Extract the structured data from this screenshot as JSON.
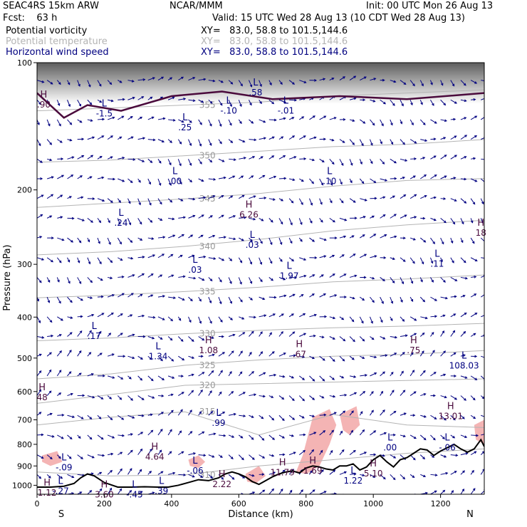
{
  "header": {
    "model": "SEAC4RS 15km ARW",
    "center": "NCAR/MMM",
    "init": "Init: 00 UTC Mon 26 Aug 13",
    "fcst": "Fcst:    63 h",
    "valid": "Valid: 15 UTC Wed 28 Aug 13 (10 CDT Wed 28 Aug 13)",
    "fields": [
      {
        "name": "Potential vorticity",
        "xy": "XY=   83.0, 58.8 to 101.5,144.6",
        "color": "#000000"
      },
      {
        "name": "Potential temperature",
        "xy": "XY=   83.0, 58.8 to 101.5,144.6",
        "color": "#b4b4b4"
      },
      {
        "name": "Horizontal wind speed",
        "xy": "XY=   83.0, 58.8 to 101.5,144.6",
        "color": "#000080"
      }
    ]
  },
  "chart_data": {
    "type": "cross-section",
    "xlabel": "Distance (km)",
    "ylabel": "Pressure (hPa)",
    "xlim": [
      0,
      1330
    ],
    "ylim": [
      1050,
      100
    ],
    "y_scale": "log",
    "x_ticks": [
      "0",
      "200",
      "400",
      "600",
      "800",
      "1000",
      "1200"
    ],
    "y_ticks": [
      "100",
      "200",
      "300",
      "400",
      "500",
      "600",
      "700",
      "800",
      "900",
      "1000"
    ],
    "endpoint_labels": {
      "left": "S",
      "right": "N"
    },
    "theta_contours": [
      {
        "label": "355",
        "p": [
          130,
          128,
          126,
          124,
          120,
          118,
          116
        ]
      },
      {
        "label": "350",
        "p": [
          172,
          170,
          166,
          162,
          158,
          156,
          152
        ]
      },
      {
        "label": "345",
        "p": [
          220,
          215,
          210,
          204,
          196,
          190,
          188
        ]
      },
      {
        "label": "340",
        "p": [
          285,
          280,
          272,
          262,
          250,
          242,
          236
        ]
      },
      {
        "label": "335",
        "p": [
          360,
          355,
          348,
          340,
          330,
          325,
          318
        ]
      },
      {
        "label": "330",
        "p": [
          455,
          448,
          438,
          430,
          424,
          420,
          414
        ]
      },
      {
        "label": "325",
        "p": [
          560,
          545,
          520,
          505,
          495,
          490,
          480
        ]
      },
      {
        "label": "320",
        "p": [
          640,
          610,
          580,
          575,
          570,
          565,
          560
        ]
      },
      {
        "label": "315",
        "p": [
          720,
          690,
          670,
          760,
          680,
          720,
          730
        ]
      },
      {
        "label": "310",
        "p": [
          930,
          950,
          945,
          900,
          870,
          840,
          820
        ]
      }
    ],
    "theta_x": [
      0,
      220,
      440,
      660,
      880,
      1100,
      1330
    ],
    "annotations": [
      {
        "t": "H",
        "v": ".90",
        "x": 20,
        "p": 122
      },
      {
        "t": "L",
        "v": "-1.5",
        "x": 200,
        "p": 128
      },
      {
        "t": "L",
        "v": ".25",
        "x": 440,
        "p": 138
      },
      {
        "t": "L",
        "v": "-.10",
        "x": 570,
        "p": 126
      },
      {
        "t": "L",
        "v": ".58",
        "x": 650,
        "p": 114
      },
      {
        "t": "L",
        "v": "-.01",
        "x": 740,
        "p": 126
      },
      {
        "t": "L",
        "v": ".00",
        "x": 410,
        "p": 185
      },
      {
        "t": "L",
        "v": ".10",
        "x": 870,
        "p": 185
      },
      {
        "t": "L",
        "v": ".24",
        "x": 250,
        "p": 232
      },
      {
        "t": "H",
        "v": "6.26",
        "x": 630,
        "p": 222
      },
      {
        "t": "L",
        "v": ".03",
        "x": 640,
        "p": 262
      },
      {
        "t": "H",
        "v": "18",
        "x": 1320,
        "p": 245
      },
      {
        "t": "L",
        "v": ".03",
        "x": 470,
        "p": 300
      },
      {
        "t": "L",
        "v": "1.97",
        "x": 750,
        "p": 310
      },
      {
        "t": "L",
        "v": ".11",
        "x": 1190,
        "p": 290
      },
      {
        "t": "L",
        "v": ".17",
        "x": 170,
        "p": 430
      },
      {
        "t": "H",
        "v": "1.08",
        "x": 510,
        "p": 465
      },
      {
        "t": "L",
        "v": "1.34",
        "x": 360,
        "p": 480
      },
      {
        "t": "H",
        "v": ".67",
        "x": 780,
        "p": 475
      },
      {
        "t": "H",
        "v": ".75",
        "x": 1120,
        "p": 465
      },
      {
        "t": "L",
        "v": "108.03",
        "x": 1270,
        "p": 505
      },
      {
        "t": "H",
        "v": "48",
        "x": 15,
        "p": 600
      },
      {
        "t": "L",
        "v": ".99",
        "x": 540,
        "p": 690
      },
      {
        "t": "H",
        "v": "13.01",
        "x": 1230,
        "p": 665
      },
      {
        "t": "L",
        "v": ".00",
        "x": 1050,
        "p": 790
      },
      {
        "t": "L",
        "v": "-.06",
        "x": 1220,
        "p": 790
      },
      {
        "t": "H",
        "v": "4.64",
        "x": 350,
        "p": 830
      },
      {
        "t": "L",
        "v": "-.09",
        "x": 80,
        "p": 880
      },
      {
        "t": "L",
        "v": "-.06",
        "x": 470,
        "p": 895
      },
      {
        "t": "H",
        "v": "11.79",
        "x": 730,
        "p": 905
      },
      {
        "t": "H",
        "v": "1.69",
        "x": 820,
        "p": 895
      },
      {
        "t": "H",
        "v": "5.10",
        "x": 1000,
        "p": 910
      },
      {
        "t": "H",
        "v": "2.22",
        "x": 550,
        "p": 965
      },
      {
        "t": "L",
        "v": "1.22",
        "x": 940,
        "p": 945
      },
      {
        "t": "H",
        "v": "1.12",
        "x": 30,
        "p": 1010
      },
      {
        "t": "L",
        "v": "-.27",
        "x": 70,
        "p": 1000
      },
      {
        "t": "L",
        "v": ".39",
        "x": 370,
        "p": 1000
      },
      {
        "t": "H",
        "v": "3.60",
        "x": 200,
        "p": 1020
      },
      {
        "t": "L",
        "v": "-.45",
        "x": 290,
        "p": 1020
      }
    ],
    "terrain": {
      "x": [
        0,
        40,
        80,
        110,
        130,
        150,
        170,
        200,
        240,
        280,
        320,
        360,
        390,
        420,
        450,
        480,
        510,
        540,
        560,
        580,
        600,
        620,
        640,
        660,
        680,
        700,
        720,
        740,
        760,
        780,
        800,
        820,
        840,
        860,
        880,
        900,
        920,
        940,
        960,
        980,
        1000,
        1020,
        1040,
        1060,
        1080,
        1100,
        1120,
        1140,
        1160,
        1180,
        1200,
        1220,
        1240,
        1260,
        1280,
        1300,
        1320,
        1330
      ],
      "p": [
        1010,
        1010,
        1005,
        990,
        960,
        940,
        950,
        985,
        1010,
        1010,
        1008,
        1010,
        1010,
        1000,
        985,
        970,
        975,
        960,
        940,
        930,
        940,
        955,
        980,
        995,
        975,
        955,
        940,
        930,
        925,
        935,
        910,
        900,
        905,
        915,
        920,
        900,
        900,
        890,
        920,
        905,
        870,
        850,
        880,
        905,
        870,
        860,
        840,
        820,
        825,
        850,
        830,
        815,
        800,
        820,
        835,
        820,
        780,
        810
      ]
    },
    "wind_vectors": "grid",
    "colors": {
      "pv_contour": "#4a0a3c",
      "theta": "#b4b4b4",
      "wind": "#000080",
      "pv_shade": "#f4b4b4",
      "terrain": "#000000"
    }
  }
}
